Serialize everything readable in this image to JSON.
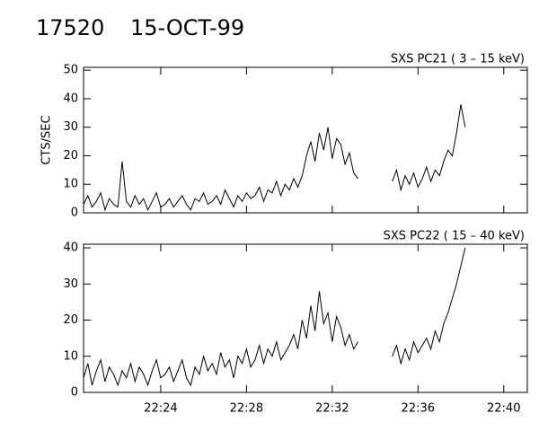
{
  "title": "17520",
  "subtitle": "15-OCT-99",
  "chart_data": [
    {
      "type": "line",
      "title": "SXS PC21  (  3 – 15 keV)",
      "ylabel": "CTS/SEC",
      "x": [
        20.4,
        20.6,
        20.8,
        21.0,
        21.2,
        21.4,
        21.6,
        21.8,
        22.0,
        22.2,
        22.4,
        22.6,
        22.8,
        23.0,
        23.2,
        23.4,
        23.6,
        23.8,
        24.0,
        24.2,
        24.4,
        24.6,
        24.8,
        25.0,
        25.2,
        25.4,
        25.6,
        25.8,
        26.0,
        26.2,
        26.4,
        26.6,
        26.8,
        27.0,
        27.2,
        27.4,
        27.6,
        27.8,
        28.0,
        28.2,
        28.4,
        28.6,
        28.8,
        29.0,
        29.2,
        29.4,
        29.6,
        29.8,
        30.0,
        30.2,
        30.4,
        30.6,
        30.8,
        31.0,
        31.2,
        31.4,
        31.6,
        31.8,
        32.0,
        32.2,
        32.4,
        32.6,
        32.8,
        33.0,
        33.2,
        33.4,
        33.6,
        33.8,
        34.0,
        34.2,
        34.4,
        34.6,
        34.8,
        35.0,
        35.2,
        35.4,
        35.6,
        35.8,
        36.0,
        36.2,
        36.4,
        36.6,
        36.8,
        37.0,
        37.2,
        37.4,
        37.6,
        37.8,
        38.0,
        38.2
      ],
      "series": [
        {
          "name": "SXS PC21",
          "color": "#000000",
          "values": [
            3,
            6,
            2,
            4,
            7,
            1,
            5,
            3,
            2,
            18,
            4,
            2,
            6,
            3,
            5,
            1,
            4,
            7,
            2,
            3,
            5,
            2,
            4,
            6,
            3,
            1,
            5,
            4,
            7,
            3,
            4,
            6,
            3,
            8,
            5,
            2,
            6,
            4,
            7,
            5,
            6,
            9,
            4,
            8,
            7,
            11,
            6,
            10,
            8,
            12,
            9,
            13,
            20,
            25,
            18,
            28,
            22,
            30,
            19,
            26,
            24,
            17,
            21,
            14,
            12,
            null,
            null,
            null,
            null,
            null,
            null,
            null,
            11,
            15,
            8,
            13,
            10,
            14,
            9,
            12,
            16,
            11,
            15,
            13,
            18,
            22,
            20,
            28,
            38,
            30
          ]
        }
      ],
      "xlim": [
        20.4,
        41.1
      ],
      "ylim": [
        0,
        51
      ],
      "yticks": [
        0,
        10,
        20,
        30,
        40,
        50
      ]
    },
    {
      "type": "line",
      "title": "SXS PC22  ( 15 – 40 keV)",
      "x": [
        20.4,
        20.6,
        20.8,
        21.0,
        21.2,
        21.4,
        21.6,
        21.8,
        22.0,
        22.2,
        22.4,
        22.6,
        22.8,
        23.0,
        23.2,
        23.4,
        23.6,
        23.8,
        24.0,
        24.2,
        24.4,
        24.6,
        24.8,
        25.0,
        25.2,
        25.4,
        25.6,
        25.8,
        26.0,
        26.2,
        26.4,
        26.6,
        26.8,
        27.0,
        27.2,
        27.4,
        27.6,
        27.8,
        28.0,
        28.2,
        28.4,
        28.6,
        28.8,
        29.0,
        29.2,
        29.4,
        29.6,
        29.8,
        30.0,
        30.2,
        30.4,
        30.6,
        30.8,
        31.0,
        31.2,
        31.4,
        31.6,
        31.8,
        32.0,
        32.2,
        32.4,
        32.6,
        32.8,
        33.0,
        33.2,
        33.4,
        33.6,
        33.8,
        34.0,
        34.2,
        34.4,
        34.6,
        34.8,
        35.0,
        35.2,
        35.4,
        35.6,
        35.8,
        36.0,
        36.2,
        36.4,
        36.6,
        36.8,
        37.0,
        37.2,
        37.4,
        37.6,
        37.8,
        38.0,
        38.2
      ],
      "series": [
        {
          "name": "SXS PC22",
          "color": "#000000",
          "values": [
            4,
            8,
            2,
            6,
            9,
            3,
            7,
            5,
            2,
            6,
            4,
            8,
            3,
            7,
            5,
            2,
            6,
            9,
            4,
            5,
            7,
            3,
            6,
            9,
            4,
            2,
            7,
            5,
            10,
            6,
            8,
            5,
            11,
            7,
            9,
            4,
            10,
            8,
            12,
            7,
            9,
            13,
            8,
            12,
            10,
            14,
            9,
            11,
            13,
            16,
            12,
            20,
            15,
            24,
            17,
            28,
            19,
            22,
            14,
            21,
            18,
            13,
            16,
            12,
            14,
            null,
            null,
            null,
            null,
            null,
            null,
            null,
            10,
            13,
            8,
            12,
            9,
            14,
            11,
            13,
            15,
            12,
            17,
            14,
            19,
            22,
            26,
            30,
            35,
            40
          ]
        }
      ],
      "xlim": [
        20.4,
        41.1
      ],
      "ylim": [
        0,
        41
      ],
      "yticks": [
        0,
        10,
        20,
        30,
        40
      ],
      "xticks": [
        {
          "value": 24,
          "label": "22:24"
        },
        {
          "value": 28,
          "label": "22:28"
        },
        {
          "value": 32,
          "label": "22:32"
        },
        {
          "value": 36,
          "label": "22:36"
        },
        {
          "value": 40,
          "label": "22:40"
        }
      ]
    }
  ]
}
